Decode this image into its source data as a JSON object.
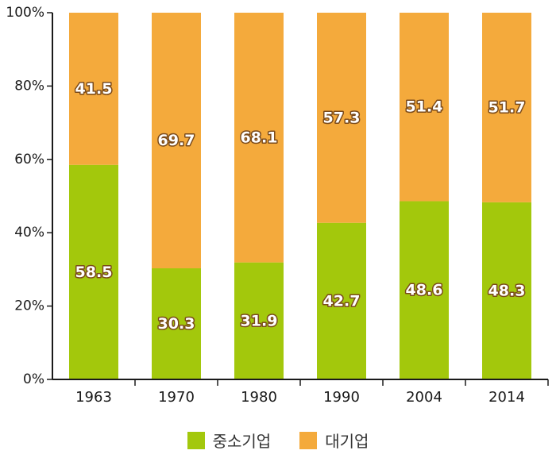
{
  "chart_data": {
    "type": "bar",
    "stacked": true,
    "categories": [
      "1963",
      "1970",
      "1980",
      "1990",
      "2004",
      "2014"
    ],
    "series": [
      {
        "name": "중소기업",
        "color": "#a3c80c",
        "values": [
          58.5,
          30.3,
          31.9,
          42.7,
          48.6,
          48.3
        ]
      },
      {
        "name": "대기업",
        "color": "#f4aa3c",
        "values": [
          41.5,
          69.7,
          68.1,
          57.3,
          51.4,
          51.7
        ]
      }
    ],
    "yticks": [
      "0%",
      "20%",
      "40%",
      "60%",
      "80%",
      "100%"
    ],
    "ylim": [
      0,
      100
    ],
    "grid": false,
    "legend_position": "bottom"
  }
}
